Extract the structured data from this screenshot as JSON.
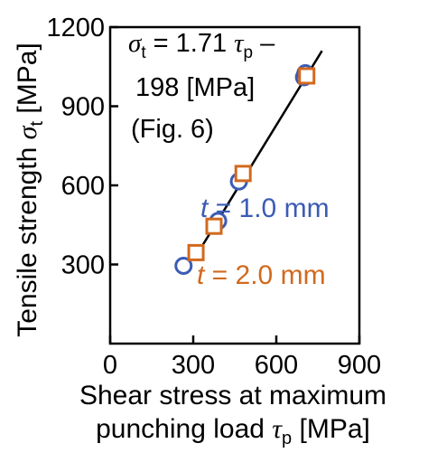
{
  "chart_data": {
    "type": "scatter",
    "title": "",
    "xlabel": {
      "line1": "Shear stress at maximum",
      "line2_prefix": "punching load ",
      "symbol": "τ",
      "subscript": "p",
      "unit": " [MPa]"
    },
    "ylabel": {
      "prefix": "Tensile strength ",
      "symbol": "σ",
      "subscript": "t",
      "unit": " [MPa]"
    },
    "xlim": [
      0,
      900
    ],
    "ylim": [
      0,
      1200
    ],
    "x_ticks": [
      0,
      300,
      600,
      900
    ],
    "y_ticks": [
      300,
      600,
      900,
      1200
    ],
    "x_tick_labels": [
      "0",
      "300",
      "600",
      "900"
    ],
    "y_tick_labels": [
      "300",
      "600",
      "900",
      "1200"
    ],
    "grid": false,
    "fit_line": {
      "slope": 1.71,
      "intercept": -198,
      "x_range": [
        305,
        765
      ],
      "equation": {
        "lhs_symbol": "σ",
        "lhs_sub": "t",
        "eq": " = 1.71 ",
        "rhs_symbol": "τ",
        "rhs_sub": "p",
        "dash": " –",
        "line2": "198 [MPa]",
        "line3": "(Fig. 6)"
      }
    },
    "series": [
      {
        "name": "t = 1.0 mm",
        "label_var": "t",
        "label_rest": " = 1.0 mm",
        "marker": "circle",
        "color": "#3b5bb5",
        "x": [
          265,
          390,
          465,
          700,
          705
        ],
        "y": [
          295,
          465,
          615,
          1010,
          1025
        ]
      },
      {
        "name": "t = 2.0 mm",
        "label_var": "t",
        "label_rest": " = 2.0 mm",
        "marker": "square",
        "color": "#d2691e",
        "x": [
          310,
          375,
          480,
          710
        ],
        "y": [
          345,
          445,
          645,
          1015
        ]
      }
    ]
  }
}
